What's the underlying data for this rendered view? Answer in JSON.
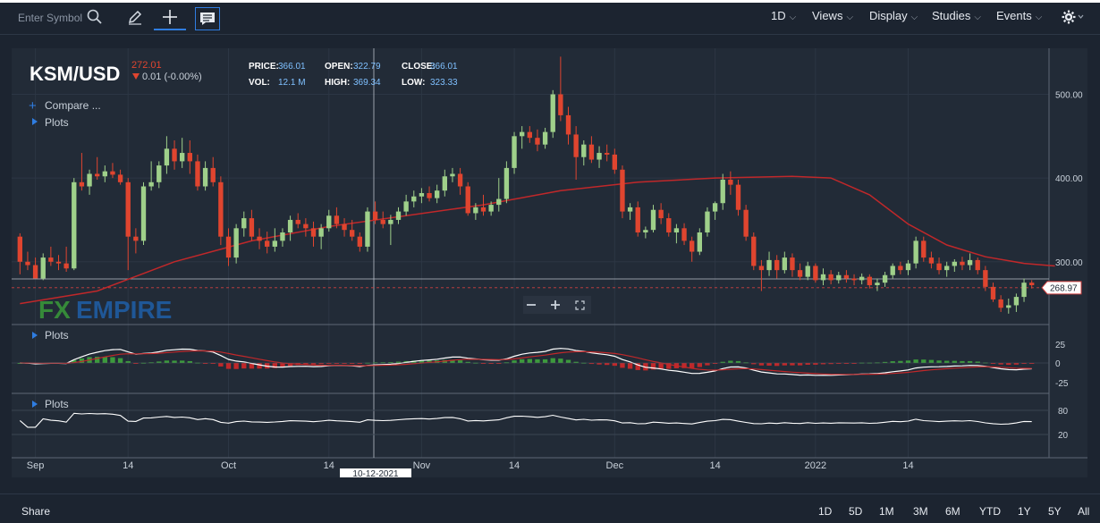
{
  "toolbar": {
    "search_placeholder": "Enter Symbol",
    "menus": [
      {
        "label": "1D"
      },
      {
        "label": "Views"
      },
      {
        "label": "Display"
      },
      {
        "label": "Studies"
      },
      {
        "label": "Events"
      }
    ]
  },
  "header": {
    "symbol": "KSM/USD",
    "last_price": "272.01",
    "change": "0.01 (-0.00%)",
    "stats": [
      {
        "label": "PRICE:",
        "value": "366.01"
      },
      {
        "label": "OPEN:",
        "value": "322.79"
      },
      {
        "label": "CLOSE:",
        "value": "366.01"
      },
      {
        "label": "VOL:",
        "value": "12.1 M"
      },
      {
        "label": "HIGH:",
        "value": "369.34"
      },
      {
        "label": "LOW:",
        "value": "323.33"
      }
    ],
    "compare_label": "Compare ...",
    "plots_label": "Plots",
    "watermark_fx": "FX",
    "watermark_empire": "EMPIRE"
  },
  "panels": {
    "macd_plots_label": "Plots",
    "rsi_plots_label": "Plots"
  },
  "crosshair": {
    "date_label": "10-12-2021",
    "price_label": "268.97"
  },
  "zoom_icons": [
    "zoom-out-icon",
    "zoom-in-icon",
    "fullscreen-icon"
  ],
  "colors": {
    "up": "#9fd08a",
    "down": "#e0452f",
    "ma": "#c0282a",
    "hist_up": "#3c9a3c",
    "hist_down": "#c0282a",
    "line": "#ffffff"
  },
  "chart_data": {
    "type": "candlestick",
    "x_ticks": [
      "Sep",
      "14",
      "Oct",
      "14",
      "Nov",
      "14",
      "Dec",
      "14",
      "2022",
      "14"
    ],
    "x_tick_positions": [
      2,
      14,
      27,
      40,
      52,
      64,
      77,
      90,
      103,
      115
    ],
    "y_ticks": [
      300,
      400,
      500
    ],
    "y_tick_labels": [
      "300.00",
      "400.00",
      "500.00"
    ],
    "ylim": [
      225,
      555
    ],
    "price_line": 268.97,
    "candles": [
      {
        "o": 330,
        "h": 334,
        "l": 285,
        "c": 300
      },
      {
        "o": 300,
        "h": 312,
        "l": 290,
        "c": 296
      },
      {
        "o": 296,
        "h": 305,
        "l": 280,
        "c": 280
      },
      {
        "o": 280,
        "h": 310,
        "l": 278,
        "c": 305
      },
      {
        "o": 305,
        "h": 318,
        "l": 295,
        "c": 300
      },
      {
        "o": 300,
        "h": 308,
        "l": 290,
        "c": 298
      },
      {
        "o": 298,
        "h": 318,
        "l": 288,
        "c": 292
      },
      {
        "o": 292,
        "h": 400,
        "l": 290,
        "c": 395
      },
      {
        "o": 395,
        "h": 430,
        "l": 385,
        "c": 390
      },
      {
        "o": 390,
        "h": 410,
        "l": 380,
        "c": 405
      },
      {
        "o": 405,
        "h": 425,
        "l": 398,
        "c": 402
      },
      {
        "o": 402,
        "h": 415,
        "l": 395,
        "c": 408
      },
      {
        "o": 408,
        "h": 418,
        "l": 400,
        "c": 404
      },
      {
        "o": 404,
        "h": 410,
        "l": 392,
        "c": 395
      },
      {
        "o": 395,
        "h": 400,
        "l": 290,
        "c": 330
      },
      {
        "o": 330,
        "h": 340,
        "l": 310,
        "c": 325
      },
      {
        "o": 325,
        "h": 395,
        "l": 320,
        "c": 390
      },
      {
        "o": 390,
        "h": 420,
        "l": 385,
        "c": 395
      },
      {
        "o": 395,
        "h": 420,
        "l": 388,
        "c": 415
      },
      {
        "o": 415,
        "h": 450,
        "l": 405,
        "c": 435
      },
      {
        "o": 435,
        "h": 445,
        "l": 410,
        "c": 420
      },
      {
        "o": 420,
        "h": 448,
        "l": 412,
        "c": 430
      },
      {
        "o": 430,
        "h": 445,
        "l": 405,
        "c": 420
      },
      {
        "o": 420,
        "h": 428,
        "l": 385,
        "c": 390
      },
      {
        "o": 390,
        "h": 420,
        "l": 385,
        "c": 412
      },
      {
        "o": 412,
        "h": 425,
        "l": 390,
        "c": 395
      },
      {
        "o": 395,
        "h": 402,
        "l": 320,
        "c": 330
      },
      {
        "o": 330,
        "h": 340,
        "l": 295,
        "c": 305
      },
      {
        "o": 305,
        "h": 345,
        "l": 298,
        "c": 340
      },
      {
        "o": 340,
        "h": 360,
        "l": 330,
        "c": 352
      },
      {
        "o": 352,
        "h": 362,
        "l": 325,
        "c": 330
      },
      {
        "o": 330,
        "h": 340,
        "l": 315,
        "c": 325
      },
      {
        "o": 325,
        "h": 336,
        "l": 310,
        "c": 318
      },
      {
        "o": 318,
        "h": 340,
        "l": 312,
        "c": 325
      },
      {
        "o": 325,
        "h": 340,
        "l": 318,
        "c": 335
      },
      {
        "o": 335,
        "h": 355,
        "l": 325,
        "c": 350
      },
      {
        "o": 350,
        "h": 358,
        "l": 340,
        "c": 345
      },
      {
        "o": 345,
        "h": 352,
        "l": 330,
        "c": 340
      },
      {
        "o": 340,
        "h": 348,
        "l": 318,
        "c": 330
      },
      {
        "o": 330,
        "h": 345,
        "l": 315,
        "c": 340
      },
      {
        "o": 340,
        "h": 362,
        "l": 336,
        "c": 355
      },
      {
        "o": 355,
        "h": 365,
        "l": 340,
        "c": 345
      },
      {
        "o": 345,
        "h": 352,
        "l": 330,
        "c": 338
      },
      {
        "o": 338,
        "h": 350,
        "l": 325,
        "c": 330
      },
      {
        "o": 330,
        "h": 335,
        "l": 312,
        "c": 318
      },
      {
        "o": 318,
        "h": 365,
        "l": 312,
        "c": 360
      },
      {
        "o": 360,
        "h": 372,
        "l": 345,
        "c": 350
      },
      {
        "o": 350,
        "h": 360,
        "l": 340,
        "c": 345
      },
      {
        "o": 345,
        "h": 356,
        "l": 320,
        "c": 350
      },
      {
        "o": 350,
        "h": 365,
        "l": 345,
        "c": 360
      },
      {
        "o": 360,
        "h": 380,
        "l": 355,
        "c": 372
      },
      {
        "o": 372,
        "h": 385,
        "l": 365,
        "c": 378
      },
      {
        "o": 378,
        "h": 388,
        "l": 370,
        "c": 382
      },
      {
        "o": 382,
        "h": 390,
        "l": 372,
        "c": 376
      },
      {
        "o": 376,
        "h": 392,
        "l": 370,
        "c": 385
      },
      {
        "o": 385,
        "h": 410,
        "l": 378,
        "c": 402
      },
      {
        "o": 402,
        "h": 412,
        "l": 395,
        "c": 405
      },
      {
        "o": 405,
        "h": 412,
        "l": 380,
        "c": 390
      },
      {
        "o": 390,
        "h": 395,
        "l": 355,
        "c": 358
      },
      {
        "o": 358,
        "h": 370,
        "l": 350,
        "c": 365
      },
      {
        "o": 365,
        "h": 380,
        "l": 355,
        "c": 360
      },
      {
        "o": 360,
        "h": 372,
        "l": 355,
        "c": 368
      },
      {
        "o": 368,
        "h": 400,
        "l": 360,
        "c": 375
      },
      {
        "o": 375,
        "h": 420,
        "l": 370,
        "c": 412
      },
      {
        "o": 412,
        "h": 455,
        "l": 405,
        "c": 450
      },
      {
        "o": 450,
        "h": 462,
        "l": 435,
        "c": 455
      },
      {
        "o": 455,
        "h": 462,
        "l": 442,
        "c": 448
      },
      {
        "o": 448,
        "h": 458,
        "l": 432,
        "c": 440
      },
      {
        "o": 440,
        "h": 460,
        "l": 435,
        "c": 455
      },
      {
        "o": 455,
        "h": 505,
        "l": 448,
        "c": 500
      },
      {
        "o": 500,
        "h": 545,
        "l": 468,
        "c": 475
      },
      {
        "o": 475,
        "h": 485,
        "l": 440,
        "c": 452
      },
      {
        "o": 452,
        "h": 462,
        "l": 398,
        "c": 425
      },
      {
        "o": 425,
        "h": 445,
        "l": 415,
        "c": 440
      },
      {
        "o": 440,
        "h": 450,
        "l": 418,
        "c": 422
      },
      {
        "o": 422,
        "h": 438,
        "l": 412,
        "c": 430
      },
      {
        "o": 430,
        "h": 440,
        "l": 420,
        "c": 428
      },
      {
        "o": 428,
        "h": 435,
        "l": 405,
        "c": 410
      },
      {
        "o": 410,
        "h": 415,
        "l": 352,
        "c": 360
      },
      {
        "o": 360,
        "h": 370,
        "l": 350,
        "c": 365
      },
      {
        "o": 365,
        "h": 372,
        "l": 330,
        "c": 335
      },
      {
        "o": 335,
        "h": 342,
        "l": 328,
        "c": 338
      },
      {
        "o": 338,
        "h": 368,
        "l": 335,
        "c": 362
      },
      {
        "o": 362,
        "h": 370,
        "l": 345,
        "c": 352
      },
      {
        "o": 352,
        "h": 358,
        "l": 330,
        "c": 335
      },
      {
        "o": 335,
        "h": 345,
        "l": 322,
        "c": 340
      },
      {
        "o": 340,
        "h": 346,
        "l": 320,
        "c": 325
      },
      {
        "o": 325,
        "h": 330,
        "l": 300,
        "c": 312
      },
      {
        "o": 312,
        "h": 340,
        "l": 308,
        "c": 335
      },
      {
        "o": 335,
        "h": 365,
        "l": 330,
        "c": 360
      },
      {
        "o": 360,
        "h": 372,
        "l": 350,
        "c": 370
      },
      {
        "o": 370,
        "h": 405,
        "l": 362,
        "c": 398
      },
      {
        "o": 398,
        "h": 408,
        "l": 380,
        "c": 392
      },
      {
        "o": 392,
        "h": 398,
        "l": 355,
        "c": 362
      },
      {
        "o": 362,
        "h": 368,
        "l": 325,
        "c": 330
      },
      {
        "o": 330,
        "h": 335,
        "l": 290,
        "c": 295
      },
      {
        "o": 295,
        "h": 302,
        "l": 265,
        "c": 290
      },
      {
        "o": 290,
        "h": 312,
        "l": 283,
        "c": 302
      },
      {
        "o": 302,
        "h": 308,
        "l": 280,
        "c": 290
      },
      {
        "o": 290,
        "h": 312,
        "l": 286,
        "c": 305
      },
      {
        "o": 305,
        "h": 310,
        "l": 282,
        "c": 290
      },
      {
        "o": 290,
        "h": 298,
        "l": 278,
        "c": 282
      },
      {
        "o": 282,
        "h": 300,
        "l": 278,
        "c": 295
      },
      {
        "o": 295,
        "h": 298,
        "l": 275,
        "c": 278
      },
      {
        "o": 278,
        "h": 292,
        "l": 272,
        "c": 285
      },
      {
        "o": 285,
        "h": 290,
        "l": 273,
        "c": 278
      },
      {
        "o": 278,
        "h": 288,
        "l": 274,
        "c": 284
      },
      {
        "o": 284,
        "h": 290,
        "l": 275,
        "c": 280
      },
      {
        "o": 280,
        "h": 285,
        "l": 272,
        "c": 278
      },
      {
        "o": 278,
        "h": 286,
        "l": 273,
        "c": 282
      },
      {
        "o": 282,
        "h": 285,
        "l": 268,
        "c": 272
      },
      {
        "o": 272,
        "h": 280,
        "l": 265,
        "c": 275
      },
      {
        "o": 275,
        "h": 288,
        "l": 270,
        "c": 284
      },
      {
        "o": 284,
        "h": 298,
        "l": 280,
        "c": 295
      },
      {
        "o": 295,
        "h": 300,
        "l": 285,
        "c": 290
      },
      {
        "o": 290,
        "h": 302,
        "l": 284,
        "c": 298
      },
      {
        "o": 298,
        "h": 330,
        "l": 292,
        "c": 325
      },
      {
        "o": 325,
        "h": 330,
        "l": 300,
        "c": 305
      },
      {
        "o": 305,
        "h": 312,
        "l": 292,
        "c": 298
      },
      {
        "o": 298,
        "h": 305,
        "l": 285,
        "c": 290
      },
      {
        "o": 290,
        "h": 300,
        "l": 282,
        "c": 295
      },
      {
        "o": 295,
        "h": 303,
        "l": 288,
        "c": 300
      },
      {
        "o": 300,
        "h": 306,
        "l": 290,
        "c": 296
      },
      {
        "o": 296,
        "h": 310,
        "l": 290,
        "c": 302
      },
      {
        "o": 302,
        "h": 305,
        "l": 285,
        "c": 290
      },
      {
        "o": 290,
        "h": 295,
        "l": 265,
        "c": 270
      },
      {
        "o": 270,
        "h": 275,
        "l": 252,
        "c": 255
      },
      {
        "o": 255,
        "h": 260,
        "l": 240,
        "c": 245
      },
      {
        "o": 245,
        "h": 256,
        "l": 238,
        "c": 248
      },
      {
        "o": 248,
        "h": 262,
        "l": 240,
        "c": 258
      },
      {
        "o": 258,
        "h": 280,
        "l": 252,
        "c": 275
      },
      {
        "o": 275,
        "h": 278,
        "l": 268,
        "c": 272
      }
    ],
    "moving_average": [
      [
        0,
        250
      ],
      [
        10,
        265
      ],
      [
        20,
        300
      ],
      [
        30,
        325
      ],
      [
        40,
        342
      ],
      [
        50,
        355
      ],
      [
        60,
        368
      ],
      [
        70,
        385
      ],
      [
        80,
        395
      ],
      [
        90,
        400
      ],
      [
        100,
        402
      ],
      [
        105,
        400
      ],
      [
        110,
        380
      ],
      [
        115,
        345
      ],
      [
        120,
        320
      ],
      [
        125,
        306
      ],
      [
        130,
        298
      ],
      [
        134,
        295
      ]
    ],
    "macd_y_ticks": [
      "25",
      "0",
      "-25"
    ],
    "rsi_y_ticks": [
      "80",
      "20"
    ]
  },
  "bottom": {
    "share_label": "Share",
    "ranges": [
      "1D",
      "5D",
      "1M",
      "3M",
      "6M",
      "YTD",
      "1Y",
      "5Y",
      "All"
    ]
  }
}
